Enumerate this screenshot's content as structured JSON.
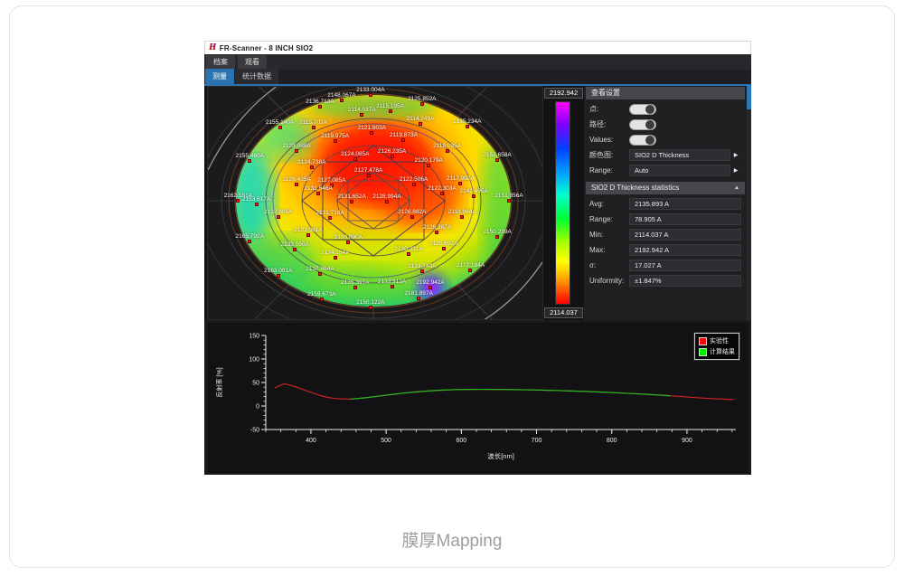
{
  "window": {
    "title": "FR-Scanner - 8 INCH SIO2"
  },
  "menu": {
    "items": [
      "档案",
      "观看"
    ]
  },
  "tabs": {
    "items": [
      {
        "label": "测量",
        "active": true
      },
      {
        "label": "统计数据",
        "active": false
      }
    ]
  },
  "colorbar": {
    "max": "2192.942",
    "min": "2114.037"
  },
  "settings": {
    "header": "查看设置",
    "toggles": [
      {
        "label": "点:",
        "on": true
      },
      {
        "label": "路径:",
        "on": true
      },
      {
        "label": "Values:",
        "on": true
      }
    ],
    "dropdowns": [
      {
        "label": "颜色图:",
        "value": "SIO2 D Thickness"
      },
      {
        "label": "Range:",
        "value": "Auto"
      }
    ]
  },
  "statistics": {
    "header": "SIO2 D Thickness statistics",
    "rows": [
      {
        "label": "Avg:",
        "value": "2135.893 A"
      },
      {
        "label": "Range:",
        "value": "78.905 A"
      },
      {
        "label": "Min:",
        "value": "2114.037 A"
      },
      {
        "label": "Max:",
        "value": "2192.942 A"
      },
      {
        "label": "σ:",
        "value": "17.027 A"
      },
      {
        "label": "Uniformity:",
        "value": "±1.847%"
      }
    ]
  },
  "icons": {
    "dropdown_arrow": "▶",
    "collapse_arrow": "▲"
  },
  "colors": {
    "accent": "#2a72b0",
    "marker": "#ff1a1a",
    "experimental": "#cc2222",
    "calculated": "#22bb22"
  },
  "caption": "膜厚Mapping",
  "chart_data": [
    {
      "type": "heatmap",
      "subtype": "wafer_thickness_map",
      "title": "SIO2 D Thickness",
      "units": "A",
      "scale": {
        "max": 2192.942,
        "min": 2114.037,
        "colormap": "magenta-blue-cyan-green-yellow-orange-red (max to min)"
      },
      "stats": {
        "avg": 2135.893,
        "range": 78.905,
        "min": 2114.037,
        "max": 2192.942,
        "sigma": 17.027,
        "uniformity_pct": 1.847
      },
      "points": [
        {
          "x": 48.6,
          "y": 3.5,
          "v": "2133.004A"
        },
        {
          "x": 40.0,
          "y": 6.0,
          "v": "2148.067A"
        },
        {
          "x": 64.0,
          "y": 7.5,
          "v": "2125.852A"
        },
        {
          "x": 33.5,
          "y": 8.5,
          "v": "2136.713A"
        },
        {
          "x": 54.5,
          "y": 10.5,
          "v": "2115.195A"
        },
        {
          "x": 46.0,
          "y": 12.0,
          "v": "2114.037A"
        },
        {
          "x": 63.5,
          "y": 16.0,
          "v": "2114.249A"
        },
        {
          "x": 77.5,
          "y": 17.0,
          "v": "2135.234A"
        },
        {
          "x": 21.5,
          "y": 17.5,
          "v": "2155.140A"
        },
        {
          "x": 31.5,
          "y": 17.5,
          "v": "2115.702A"
        },
        {
          "x": 49.0,
          "y": 20.0,
          "v": "2121.803A"
        },
        {
          "x": 38.0,
          "y": 23.5,
          "v": "2119.975A"
        },
        {
          "x": 58.5,
          "y": 23.0,
          "v": "2119.873A"
        },
        {
          "x": 26.5,
          "y": 27.5,
          "v": "2123.088A"
        },
        {
          "x": 71.5,
          "y": 27.5,
          "v": "2118.085A"
        },
        {
          "x": 55.0,
          "y": 30.0,
          "v": "2126.235A"
        },
        {
          "x": 44.0,
          "y": 31.0,
          "v": "2124.085A"
        },
        {
          "x": 86.5,
          "y": 31.5,
          "v": "2152.658A"
        },
        {
          "x": 12.5,
          "y": 32.0,
          "v": "2155.460A"
        },
        {
          "x": 66.0,
          "y": 34.0,
          "v": "2120.179A"
        },
        {
          "x": 31.0,
          "y": 34.5,
          "v": "2124.738A"
        },
        {
          "x": 48.0,
          "y": 38.0,
          "v": "2127.478A"
        },
        {
          "x": 75.5,
          "y": 41.5,
          "v": "2117.992A"
        },
        {
          "x": 26.5,
          "y": 42.0,
          "v": "2126.435A"
        },
        {
          "x": 37.0,
          "y": 42.5,
          "v": "2127.085A"
        },
        {
          "x": 61.5,
          "y": 42.0,
          "v": "2122.506A"
        },
        {
          "x": 70.0,
          "y": 46.0,
          "v": "2122.303A"
        },
        {
          "x": 79.5,
          "y": 47.0,
          "v": "2141.495A"
        },
        {
          "x": 33.0,
          "y": 46.0,
          "v": "2131.546A"
        },
        {
          "x": 43.0,
          "y": 49.5,
          "v": "2131.652A"
        },
        {
          "x": 53.5,
          "y": 49.5,
          "v": "2128.994A"
        },
        {
          "x": 90.0,
          "y": 49.0,
          "v": "2151.856A"
        },
        {
          "x": 9.0,
          "y": 49.0,
          "v": "2162.551A"
        },
        {
          "x": 14.5,
          "y": 50.5,
          "v": "2153.617A"
        },
        {
          "x": 21.0,
          "y": 56.0,
          "v": "2132.805A"
        },
        {
          "x": 36.5,
          "y": 56.5,
          "v": "2131.718A"
        },
        {
          "x": 61.0,
          "y": 56.0,
          "v": "2126.882A"
        },
        {
          "x": 76.0,
          "y": 56.0,
          "v": "2118.964A"
        },
        {
          "x": 30.0,
          "y": 64.0,
          "v": "2132.061A"
        },
        {
          "x": 42.0,
          "y": 67.0,
          "v": "2130.090A"
        },
        {
          "x": 68.5,
          "y": 62.5,
          "v": "2126.387A"
        },
        {
          "x": 86.5,
          "y": 64.5,
          "v": "2150.239A"
        },
        {
          "x": 70.5,
          "y": 69.5,
          "v": "2125.692A"
        },
        {
          "x": 26.0,
          "y": 70.0,
          "v": "2133.050A"
        },
        {
          "x": 38.0,
          "y": 73.5,
          "v": "2134.184A"
        },
        {
          "x": 60.0,
          "y": 72.0,
          "v": "2130.331A"
        },
        {
          "x": 12.5,
          "y": 66.5,
          "v": "2165.792A"
        },
        {
          "x": 78.5,
          "y": 79.0,
          "v": "2172.184A"
        },
        {
          "x": 33.5,
          "y": 80.5,
          "v": "2137.864A"
        },
        {
          "x": 64.0,
          "y": 79.5,
          "v": "2133.743A"
        },
        {
          "x": 21.0,
          "y": 81.5,
          "v": "2163.091A"
        },
        {
          "x": 44.0,
          "y": 86.5,
          "v": "2135.397A"
        },
        {
          "x": 55.0,
          "y": 86.0,
          "v": "2133.913A"
        },
        {
          "x": 66.5,
          "y": 86.5,
          "v": "2192.942A"
        },
        {
          "x": 34.0,
          "y": 91.5,
          "v": "2159.673A"
        },
        {
          "x": 63.0,
          "y": 91.0,
          "v": "2181.897A"
        },
        {
          "x": 48.6,
          "y": 95.0,
          "v": "2150.122A"
        }
      ]
    },
    {
      "type": "line",
      "title": "",
      "xlabel": "波长[nm]",
      "ylabel": "反射率 [%]",
      "xlim": [
        340,
        965
      ],
      "ylim": [
        -50,
        150
      ],
      "xticks": [
        400,
        500,
        600,
        700,
        800,
        900
      ],
      "yticks": [
        -50,
        0,
        50,
        100,
        150
      ],
      "minor_step_x": 20,
      "minor_step_y": 10,
      "grid": false,
      "legend_position": "top-right",
      "legend": [
        {
          "label": "实验性",
          "color": "#ff0000"
        },
        {
          "label": "计算结果",
          "color": "#00ee00"
        }
      ],
      "series": [
        {
          "name": "实验性",
          "color": "#cc2222",
          "points": [
            [
              352,
              38
            ],
            [
              356,
              41.5
            ],
            [
              360,
              44.5
            ],
            [
              364,
              46.8
            ],
            [
              368,
              46
            ],
            [
              374,
              43.5
            ],
            [
              382,
              39.5
            ],
            [
              392,
              33.5
            ],
            [
              402,
              28
            ],
            [
              412,
              22.5
            ],
            [
              422,
              18.5
            ],
            [
              432,
              16
            ],
            [
              442,
              15
            ],
            [
              452,
              14.8
            ],
            [
              462,
              15.8
            ],
            [
              475,
              18
            ],
            [
              490,
              21
            ],
            [
              505,
              24
            ],
            [
              520,
              26.8
            ],
            [
              535,
              29.3
            ],
            [
              550,
              31.3
            ],
            [
              565,
              33
            ],
            [
              580,
              34.2
            ],
            [
              595,
              35
            ],
            [
              610,
              35.4
            ],
            [
              625,
              35.5
            ],
            [
              640,
              35.4
            ],
            [
              655,
              35.2
            ],
            [
              670,
              34.9
            ],
            [
              685,
              34.5
            ],
            [
              700,
              34
            ],
            [
              715,
              33.4
            ],
            [
              730,
              32.8
            ],
            [
              745,
              32
            ],
            [
              760,
              31.2
            ],
            [
              775,
              30.3
            ],
            [
              790,
              29.3
            ],
            [
              805,
              28.2
            ],
            [
              820,
              27
            ],
            [
              835,
              25.8
            ],
            [
              850,
              24.5
            ],
            [
              865,
              23
            ],
            [
              880,
              21.5
            ],
            [
              895,
              19.8
            ],
            [
              910,
              18
            ],
            [
              925,
              16.5
            ],
            [
              940,
              15.2
            ],
            [
              955,
              14.2
            ],
            [
              962,
              13.8
            ]
          ]
        },
        {
          "name": "计算结果",
          "color": "#22bb22",
          "points": [
            [
              452,
              14.8
            ],
            [
              462,
              15.8
            ],
            [
              475,
              18
            ],
            [
              490,
              21
            ],
            [
              505,
              24
            ],
            [
              520,
              26.8
            ],
            [
              535,
              29.3
            ],
            [
              550,
              31.3
            ],
            [
              565,
              33
            ],
            [
              580,
              34.2
            ],
            [
              595,
              35
            ],
            [
              610,
              35.4
            ],
            [
              625,
              35.5
            ],
            [
              640,
              35.4
            ],
            [
              655,
              35.2
            ],
            [
              670,
              34.9
            ],
            [
              685,
              34.5
            ],
            [
              700,
              34
            ],
            [
              715,
              33.4
            ],
            [
              730,
              32.8
            ],
            [
              745,
              32
            ],
            [
              760,
              31.2
            ],
            [
              775,
              30.3
            ],
            [
              790,
              29.3
            ],
            [
              805,
              28.2
            ],
            [
              820,
              27
            ],
            [
              835,
              25.8
            ],
            [
              850,
              24.5
            ],
            [
              865,
              23
            ],
            [
              878,
              21.7
            ]
          ]
        }
      ]
    }
  ]
}
